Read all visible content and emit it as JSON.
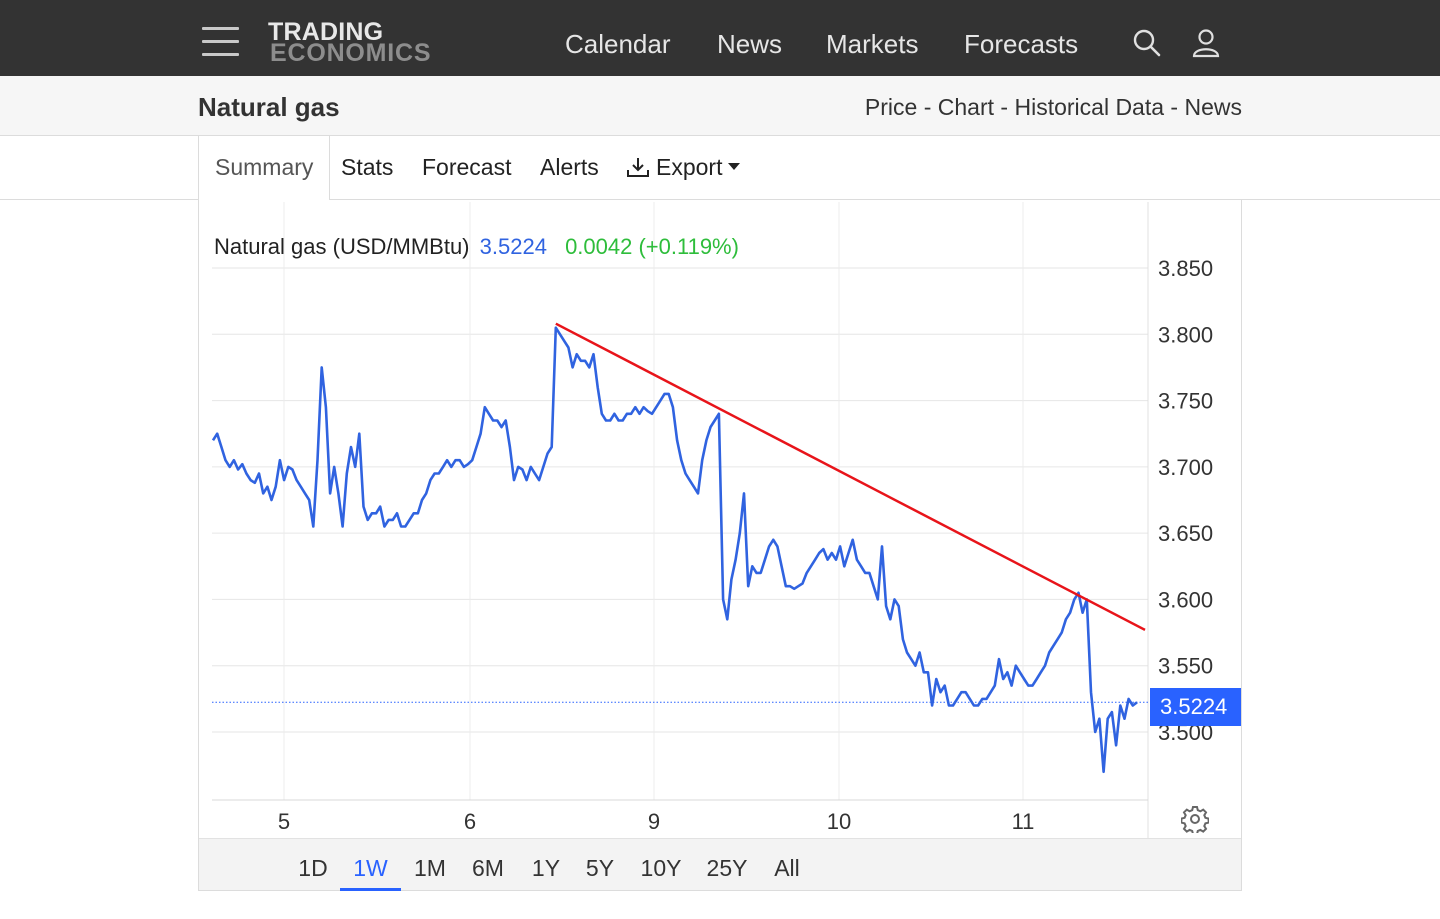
{
  "nav": {
    "logo_top": "TRADING",
    "logo_bottom": "ECONOMICS",
    "links": [
      "Calendar",
      "News",
      "Markets",
      "Forecasts"
    ],
    "icons": [
      "menu-icon",
      "search-icon",
      "user-icon"
    ]
  },
  "subbar": {
    "title": "Natural gas",
    "links": [
      "Price",
      "Chart",
      "Historical Data",
      "News"
    ],
    "separator": " - "
  },
  "tabs": {
    "items": [
      "Summary",
      "Stats",
      "Forecast",
      "Alerts",
      "Export"
    ],
    "active": "Summary",
    "export_icon": "download-icon"
  },
  "chart_header": {
    "name": "Natural gas (USD/MMBtu)",
    "price": "3.5224",
    "change": "0.0042 (+0.119%)"
  },
  "price_tag": "3.5224",
  "ranges": {
    "items": [
      "1D",
      "1W",
      "1M",
      "6M",
      "1Y",
      "5Y",
      "10Y",
      "25Y",
      "All"
    ],
    "active": "1W"
  },
  "colors": {
    "line": "#3063e0",
    "trendline": "#e8141a",
    "accent": "#2962ff",
    "positive": "#2ebd3b"
  },
  "chart_data": {
    "type": "line",
    "title": "Natural gas (USD/MMBtu)",
    "xlabel": "",
    "ylabel": "",
    "x_tick_labels": [
      "5",
      "6",
      "9",
      "10",
      "11"
    ],
    "y_tick_labels": [
      "3.500",
      "3.550",
      "3.600",
      "3.650",
      "3.700",
      "3.750",
      "3.800",
      "3.850"
    ],
    "ylim": [
      3.45,
      3.875
    ],
    "grid": true,
    "last_value": 3.5224,
    "series": [
      {
        "values": [
          3.72,
          3.725,
          3.715,
          3.705,
          3.7,
          3.705,
          3.698,
          3.702,
          3.695,
          3.69,
          3.688,
          3.695,
          3.68,
          3.685,
          3.675,
          3.685,
          3.705,
          3.69,
          3.7,
          3.698,
          3.69,
          3.685,
          3.68,
          3.675,
          3.655,
          3.705,
          3.775,
          3.745,
          3.68,
          3.7,
          3.68,
          3.655,
          3.695,
          3.715,
          3.7,
          3.725,
          3.67,
          3.66,
          3.665,
          3.665,
          3.67,
          3.655,
          3.66,
          3.66,
          3.665,
          3.655,
          3.655,
          3.66,
          3.665,
          3.665,
          3.675,
          3.68,
          3.69,
          3.695,
          3.695,
          3.7,
          3.705,
          3.7,
          3.705,
          3.705,
          3.7,
          3.702,
          3.705,
          3.715,
          3.725,
          3.745,
          3.74,
          3.735,
          3.735,
          3.73,
          3.735,
          3.715,
          3.69,
          3.7,
          3.698,
          3.69,
          3.7,
          3.695,
          3.69,
          3.7,
          3.71,
          3.715,
          3.805,
          3.8,
          3.795,
          3.79,
          3.775,
          3.785,
          3.78,
          3.78,
          3.775,
          3.785,
          3.76,
          3.74,
          3.735,
          3.735,
          3.74,
          3.735,
          3.735,
          3.74,
          3.74,
          3.745,
          3.74,
          3.745,
          3.742,
          3.74,
          3.745,
          3.75,
          3.755,
          3.755,
          3.745,
          3.72,
          3.705,
          3.695,
          3.69,
          3.685,
          3.68,
          3.705,
          3.72,
          3.73,
          3.735,
          3.74,
          3.6,
          3.585,
          3.615,
          3.63,
          3.65,
          3.68,
          3.61,
          3.625,
          3.62,
          3.62,
          3.63,
          3.64,
          3.645,
          3.64,
          3.625,
          3.61,
          3.61,
          3.608,
          3.61,
          3.612,
          3.62,
          3.625,
          3.63,
          3.635,
          3.638,
          3.63,
          3.635,
          3.63,
          3.64,
          3.625,
          3.635,
          3.645,
          3.63,
          3.625,
          3.62,
          3.62,
          3.61,
          3.6,
          3.64,
          3.595,
          3.585,
          3.6,
          3.595,
          3.57,
          3.56,
          3.555,
          3.55,
          3.56,
          3.545,
          3.545,
          3.52,
          3.54,
          3.53,
          3.535,
          3.52,
          3.52,
          3.525,
          3.53,
          3.53,
          3.525,
          3.52,
          3.52,
          3.525,
          3.525,
          3.53,
          3.535,
          3.555,
          3.54,
          3.545,
          3.535,
          3.55,
          3.545,
          3.54,
          3.535,
          3.535,
          3.54,
          3.545,
          3.55,
          3.56,
          3.565,
          3.57,
          3.575,
          3.585,
          3.59,
          3.6,
          3.605,
          3.59,
          3.6,
          3.53,
          3.5,
          3.51,
          3.47,
          3.51,
          3.515,
          3.49,
          3.52,
          3.51,
          3.525,
          3.52,
          3.5224
        ]
      }
    ],
    "trendline": {
      "start": {
        "x_index": 82,
        "y": 3.808
      },
      "end_y": 3.577
    }
  }
}
